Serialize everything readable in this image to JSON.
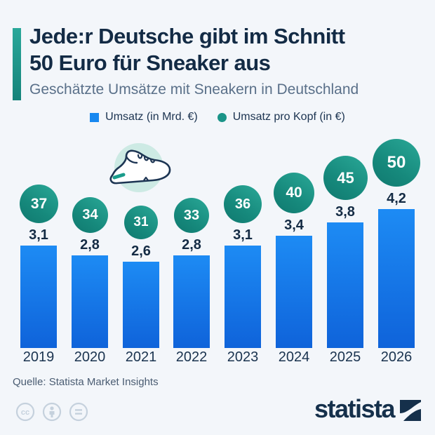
{
  "page": {
    "background": "#f3f6fa"
  },
  "header": {
    "title_line1": "Jede:r Deutsche gibt im Schnitt",
    "title_line2": "50 Euro für Sneaker aus",
    "subtitle": "Geschätzte Umsätze mit Sneakern in Deutschland",
    "accent_color": "#1a9488"
  },
  "legend": {
    "items": [
      {
        "marker": "square",
        "color": "#1788f0",
        "label": "Umsatz (in Mrd. €)"
      },
      {
        "marker": "circle",
        "color": "#1a9488",
        "label": "Umsatz pro Kopf (in €)"
      }
    ]
  },
  "chart_data": {
    "type": "bar",
    "title": "Geschätzte Umsätze mit Sneakern in Deutschland",
    "categories": [
      "2019",
      "2020",
      "2021",
      "2022",
      "2023",
      "2024",
      "2025",
      "2026"
    ],
    "series": [
      {
        "name": "Umsatz (in Mrd. €)",
        "display": "bar",
        "values": [
          3.1,
          2.8,
          2.6,
          2.8,
          3.1,
          3.4,
          3.8,
          4.2
        ],
        "labels": [
          "3,1",
          "2,8",
          "2,6",
          "2,8",
          "3,1",
          "3,4",
          "3,8",
          "4,2"
        ],
        "color": "#1788f0"
      },
      {
        "name": "Umsatz pro Kopf (in €)",
        "display": "bubble",
        "values": [
          37,
          34,
          31,
          33,
          36,
          40,
          45,
          50
        ],
        "labels": [
          "37",
          "34",
          "31",
          "33",
          "36",
          "40",
          "45",
          "50"
        ],
        "color": "#1a9488"
      }
    ],
    "xlabel": "",
    "ylabel": "",
    "ylim": [
      0,
      4.5
    ],
    "grid": false,
    "legend_position": "top"
  },
  "decoration": {
    "sneaker_bg_color": "#cdeae4",
    "sneaker_outline_color": "#1d3553",
    "sneaker_accent_color": "#1a9c8b"
  },
  "footer": {
    "source": "Quelle: Statista Market Insights",
    "brand": "statista",
    "brand_color": "#15304b",
    "license_icon_color": "#c5d1dd"
  }
}
